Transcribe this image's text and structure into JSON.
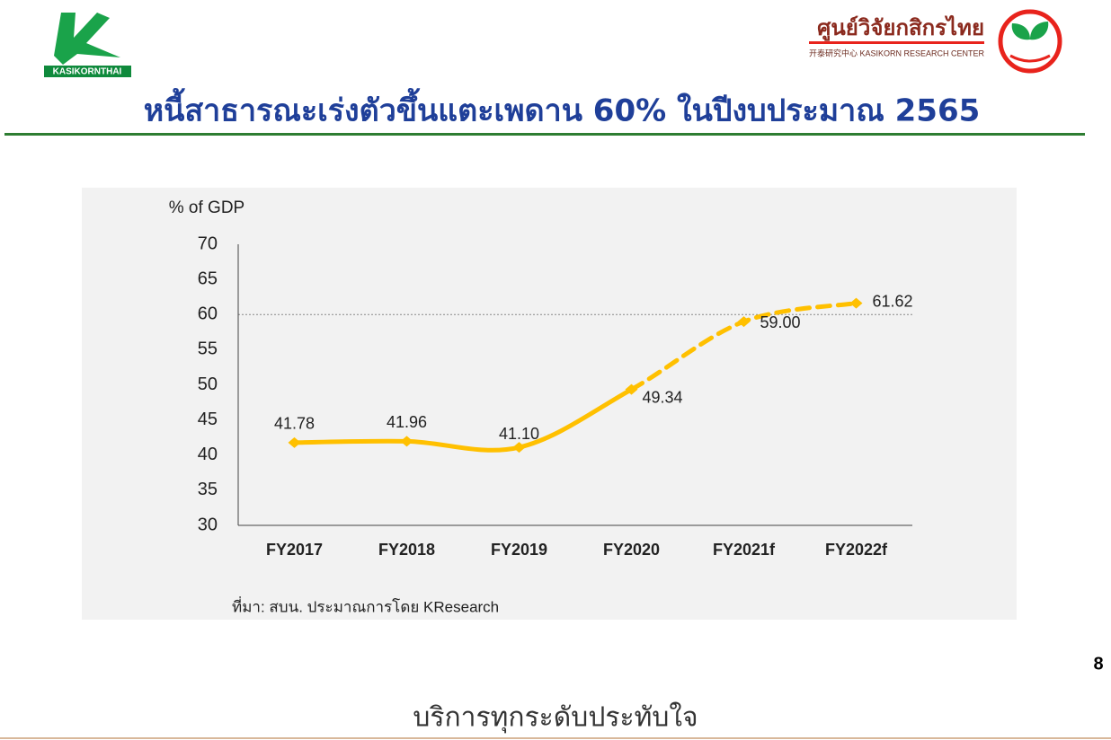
{
  "header": {
    "logo_text": "KASIKORNTHAI",
    "brand_thai": "ศูนย์วิจัยกสิกรไทย",
    "brand_sub": "开泰研究中心 KASIKORN RESEARCH CENTER"
  },
  "page_number": 8,
  "footer": "บริการทุกระดับประทับใจ",
  "chart_data": {
    "type": "line",
    "title": "หนี้สาธารณะเร่งตัวขึ้นแตะเพดาน 60% ในปีงบประมาณ 2565",
    "y_label": "% of GDP",
    "categories": [
      "FY2017",
      "FY2018",
      "FY2019",
      "FY2020",
      "FY2021f",
      "FY2022f"
    ],
    "values": [
      41.78,
      41.96,
      41.1,
      49.34,
      59.0,
      61.62
    ],
    "value_labels": [
      "41.78",
      "41.96",
      "41.10",
      "49.34",
      "59.00",
      "61.62"
    ],
    "color": "#ffc000",
    "segment_styles": [
      "solid",
      "solid",
      "solid",
      "dashed",
      "dashed"
    ],
    "reference_line": 60,
    "ylim": [
      30,
      70
    ],
    "yticks": [
      30,
      35,
      40,
      45,
      50,
      55,
      60,
      65,
      70
    ],
    "note": "ที่มา: สบน. ประมาณการโดย KResearch"
  }
}
